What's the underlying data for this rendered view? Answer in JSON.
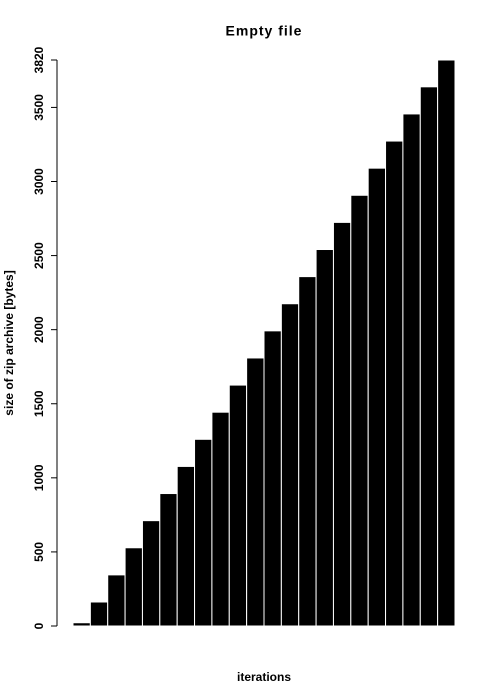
{
  "chart_data": {
    "type": "bar",
    "title": "Empty file",
    "x_label": "iterations",
    "y_label": "size of zip archive [bytes]",
    "values": [
      22,
      162,
      345,
      528,
      711,
      894,
      1077,
      1260,
      1443,
      1626,
      1809,
      1992,
      2175,
      2358,
      2541,
      2724,
      2907,
      3090,
      3273,
      3456,
      3639,
      3820
    ],
    "color": "#000000",
    "ylim": [
      0,
      3820
    ],
    "yticks": [
      0,
      500,
      1000,
      1500,
      2000,
      2500,
      3000,
      3500,
      3820
    ],
    "grid": false
  }
}
